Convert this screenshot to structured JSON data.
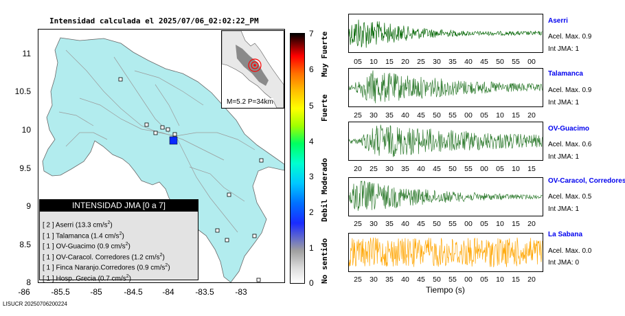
{
  "map": {
    "title": "Intensidad calculada el 2025/07/06_02:02:22_PM",
    "y_ticks": [
      "11",
      "10.5",
      "10",
      "9.5",
      "9",
      "8.5",
      "8"
    ],
    "x_ticks": [
      "-86",
      "-85.5",
      "-85",
      "-84.5",
      "-84",
      "-83.5",
      "-83"
    ],
    "inset_label": "M=5.2 P=34km",
    "footer": "LISUCR 20250706200224",
    "land_color": "#b2ecee",
    "epicenter_color": "#ff0000",
    "marker_color": "#0a2aff"
  },
  "legend": {
    "title": "INTENSIDAD JMA [0 a 7]",
    "rows": [
      {
        "intensity": "[ 2 ]",
        "station": "Aserri (13.3 cm/s",
        "sup": "2",
        "close": ")"
      },
      {
        "intensity": "[ 1 ]",
        "station": "Talamanca (1.4 cm/s",
        "sup": "2",
        "close": ")"
      },
      {
        "intensity": "[ 1 ]",
        "station": "OV-Guacimo (0.9 cm/s",
        "sup": "2",
        "close": ")"
      },
      {
        "intensity": "[ 1 ]",
        "station": "OV-Caracol. Corredores (1.2 cm/s",
        "sup": "2",
        "close": ")"
      },
      {
        "intensity": "[ 1 ]",
        "station": "Finca Naranjo.Corredores (0.9 cm/s",
        "sup": "2",
        "close": ")"
      },
      {
        "intensity": "[ 1 ]",
        "station": "Hosp. Grecia (0.7 cm/s",
        "sup": "2",
        "close": ")"
      }
    ]
  },
  "colorbar": {
    "numbers": [
      "7",
      "6",
      "5",
      "4",
      "3",
      "2",
      "1",
      "0"
    ],
    "labels": [
      "Muy Fuerte",
      "Fuerte",
      "Moderado",
      "Debil",
      "No sentido"
    ]
  },
  "waveforms": {
    "xlabel": "Tiempo (s)",
    "stations": [
      {
        "name": "Aserri",
        "accel": "Acel. Max. 0.9",
        "jma": "Int JMA: 1",
        "color": "#006400",
        "ticks": [
          "05",
          "10",
          "15",
          "20",
          "25",
          "30",
          "35",
          "40",
          "45",
          "50",
          "55",
          "00"
        ]
      },
      {
        "name": "Talamanca",
        "accel": "Acel. Max. 0.9",
        "jma": "Int JMA: 1",
        "color": "#2d7a2d",
        "ticks": [
          "25",
          "30",
          "35",
          "40",
          "45",
          "50",
          "55",
          "00",
          "05",
          "10",
          "15",
          "20"
        ]
      },
      {
        "name": "OV-Guacimo",
        "accel": "Acel. Max. 0.6",
        "jma": "Int JMA: 1",
        "color": "#2d7a2d",
        "ticks": [
          "20",
          "25",
          "30",
          "35",
          "40",
          "45",
          "50",
          "55",
          "00",
          "05",
          "10",
          "15"
        ]
      },
      {
        "name": "OV-Caracol, Corredores",
        "accel": "Acel. Max. 0.5",
        "jma": "Int JMA: 1",
        "color": "#2d7a2d",
        "ticks": [
          "25",
          "30",
          "35",
          "40",
          "45",
          "50",
          "55",
          "00",
          "05",
          "10",
          "15",
          "20"
        ]
      },
      {
        "name": "La Sabana",
        "accel": "Acel. Max. 0.0",
        "jma": "Int JMA: 0",
        "color": "#ffa500",
        "ticks": [
          "25",
          "30",
          "35",
          "40",
          "45",
          "50",
          "55",
          "00",
          "05",
          "10",
          "15",
          "20"
        ]
      }
    ]
  }
}
